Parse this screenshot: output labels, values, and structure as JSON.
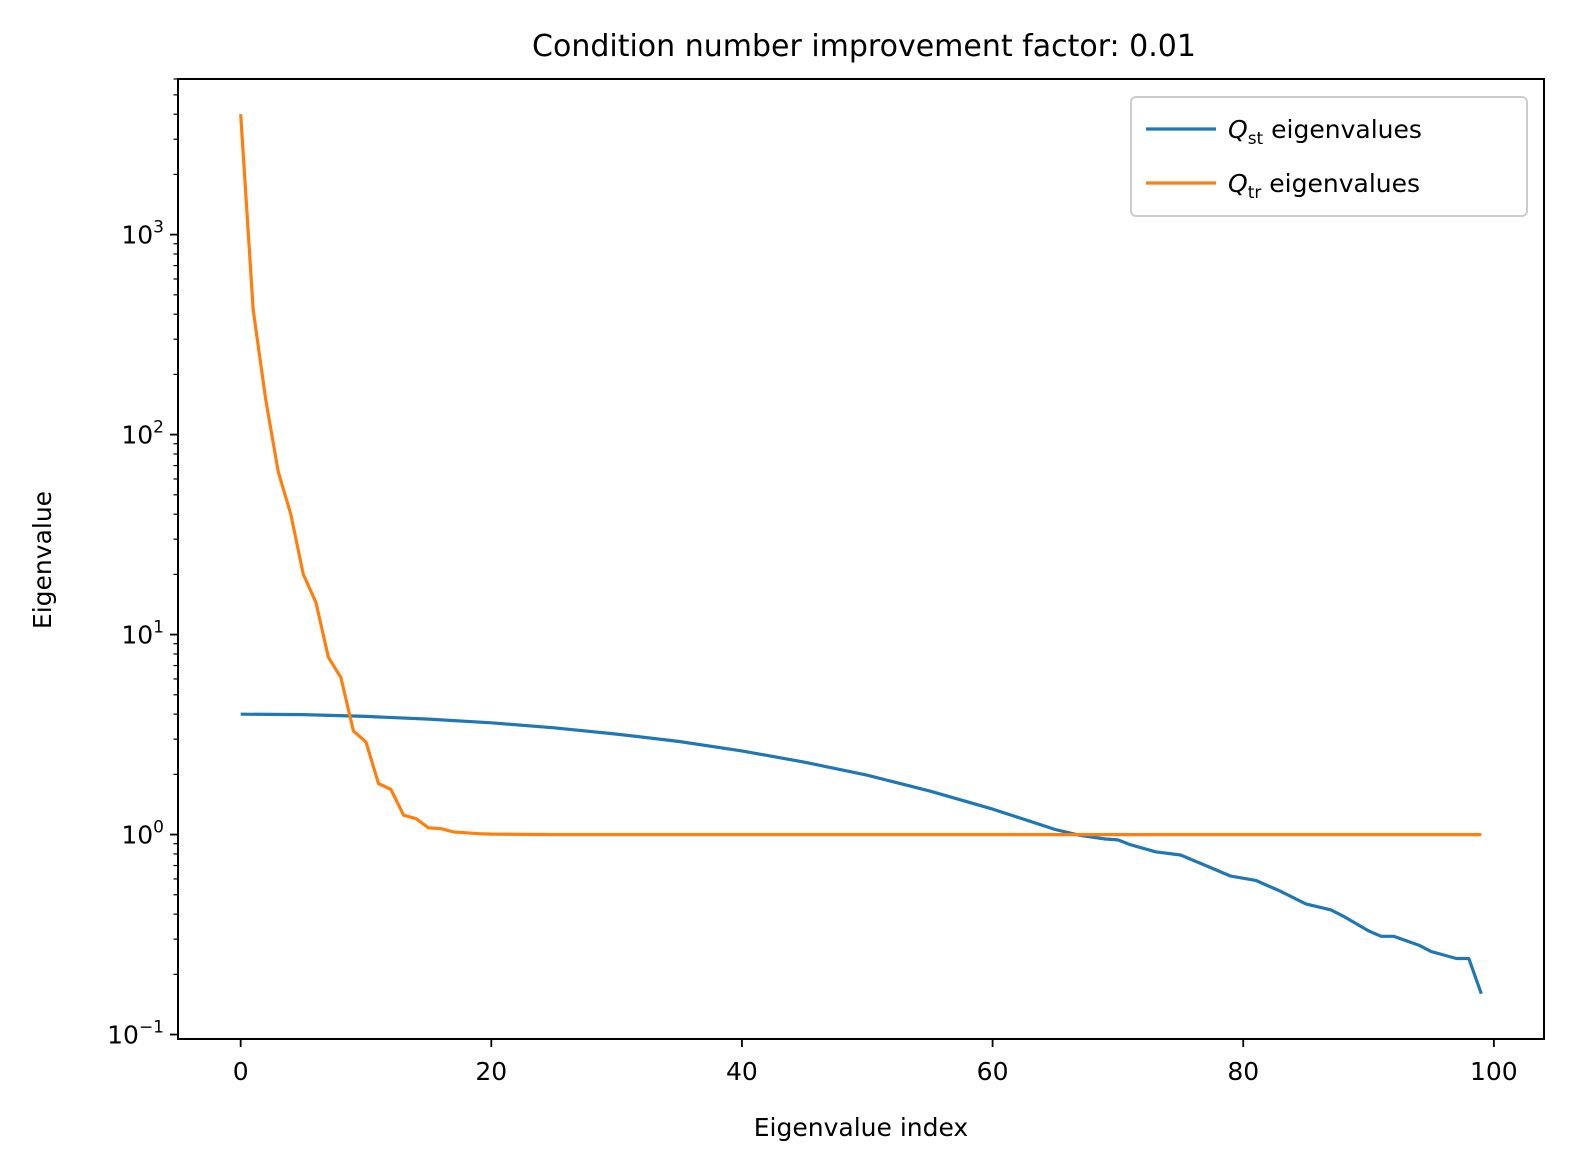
{
  "chart_data": {
    "type": "line",
    "title": "Condition number improvement factor: 0.01",
    "xlabel": "Eigenvalue index",
    "ylabel": "Eigenvalue",
    "yscale": "log",
    "xlim": [
      -5,
      104
    ],
    "ylim": [
      0.095,
      6000
    ],
    "xticks": [
      0,
      20,
      40,
      60,
      80,
      100
    ],
    "yticks": [
      {
        "value": 0.1,
        "base": "10",
        "exp": "−1"
      },
      {
        "value": 1,
        "base": "10",
        "exp": "0"
      },
      {
        "value": 10,
        "base": "10",
        "exp": "1"
      },
      {
        "value": 100,
        "base": "10",
        "exp": "2"
      },
      {
        "value": 1000,
        "base": "10",
        "exp": "3"
      }
    ],
    "grid": false,
    "legend_position": "top-right",
    "series": [
      {
        "name_main": "Q",
        "name_sub": "st",
        "name_rest": " eigenvalues",
        "color": "#1f77b4",
        "x": [
          0,
          5,
          10,
          15,
          20,
          25,
          30,
          35,
          40,
          45,
          50,
          55,
          60,
          65,
          67,
          69,
          70,
          71,
          73,
          75,
          77,
          79,
          81,
          83,
          85,
          87,
          88,
          90,
          91,
          92,
          94,
          95,
          96,
          97,
          98,
          99
        ],
        "y": [
          4.0,
          3.98,
          3.9,
          3.78,
          3.62,
          3.42,
          3.18,
          2.92,
          2.62,
          2.3,
          1.98,
          1.65,
          1.34,
          1.06,
          0.99,
          0.95,
          0.94,
          0.89,
          0.82,
          0.79,
          0.7,
          0.62,
          0.59,
          0.52,
          0.45,
          0.42,
          0.39,
          0.33,
          0.31,
          0.31,
          0.28,
          0.26,
          0.25,
          0.24,
          0.24,
          0.16
        ]
      },
      {
        "name_main": "Q",
        "name_sub": "tr",
        "name_rest": " eigenvalues",
        "color": "#ff7f0e",
        "x": [
          0,
          1,
          2,
          3,
          4,
          5,
          6,
          7,
          8,
          9,
          10,
          11,
          12,
          13,
          14,
          15,
          16,
          17,
          18,
          19,
          20,
          25,
          30,
          40,
          50,
          60,
          70,
          80,
          90,
          99
        ],
        "y": [
          4000,
          420,
          150,
          65,
          40,
          20,
          14.5,
          7.7,
          6.1,
          3.3,
          2.9,
          1.8,
          1.68,
          1.25,
          1.2,
          1.08,
          1.07,
          1.03,
          1.02,
          1.01,
          1.005,
          1.0,
          1.0,
          1.0,
          1.0,
          1.0,
          1.0,
          1.0,
          1.0,
          1.0
        ]
      }
    ]
  }
}
